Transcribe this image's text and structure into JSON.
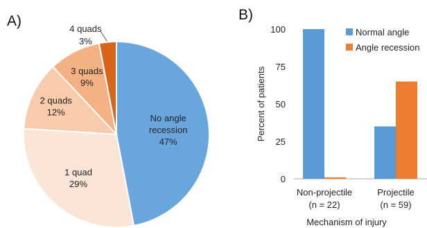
{
  "chart_data": [
    {
      "type": "pie",
      "panel_label": "A)",
      "title": "",
      "slices": [
        {
          "label": "No angle recession",
          "lines": [
            "No angle",
            "recession"
          ],
          "value": 47,
          "value_text": "47%",
          "color": "#6aa6de"
        },
        {
          "label": "1 quad",
          "lines": [
            "1 quad"
          ],
          "value": 29,
          "value_text": "29%",
          "color": "#fbe5d6"
        },
        {
          "label": "2 quads",
          "lines": [
            "2 quads"
          ],
          "value": 12,
          "value_text": "12%",
          "color": "#f8cbad"
        },
        {
          "label": "3 quads",
          "lines": [
            "3 quads"
          ],
          "value": 9,
          "value_text": "9%",
          "color": "#f4b183"
        },
        {
          "label": "4 quads",
          "lines": [
            "4 quads"
          ],
          "value": 3,
          "value_text": "3%",
          "color": "#d9651d"
        }
      ],
      "start_angle_deg": 0,
      "direction": "clockwise",
      "edge_color": "#ffffff"
    },
    {
      "type": "bar",
      "panel_label": "B)",
      "title": "",
      "xlabel": "Mechanism of injury",
      "ylabel": "Percent of patients",
      "categories": [
        {
          "lines": [
            "Non-projectile",
            "(n = 22)"
          ]
        },
        {
          "lines": [
            "Projectile",
            "(n = 59)"
          ]
        }
      ],
      "series": [
        {
          "name": "Normal angle",
          "color": "#5b9bd5",
          "values": [
            100,
            35
          ]
        },
        {
          "name": "Angle recession",
          "color": "#ed7d31",
          "values": [
            1,
            65
          ]
        }
      ],
      "ylim": [
        0,
        100
      ],
      "yticks": [
        0,
        25,
        50,
        75,
        100
      ],
      "grid": false,
      "legend_position": "top-right"
    }
  ]
}
